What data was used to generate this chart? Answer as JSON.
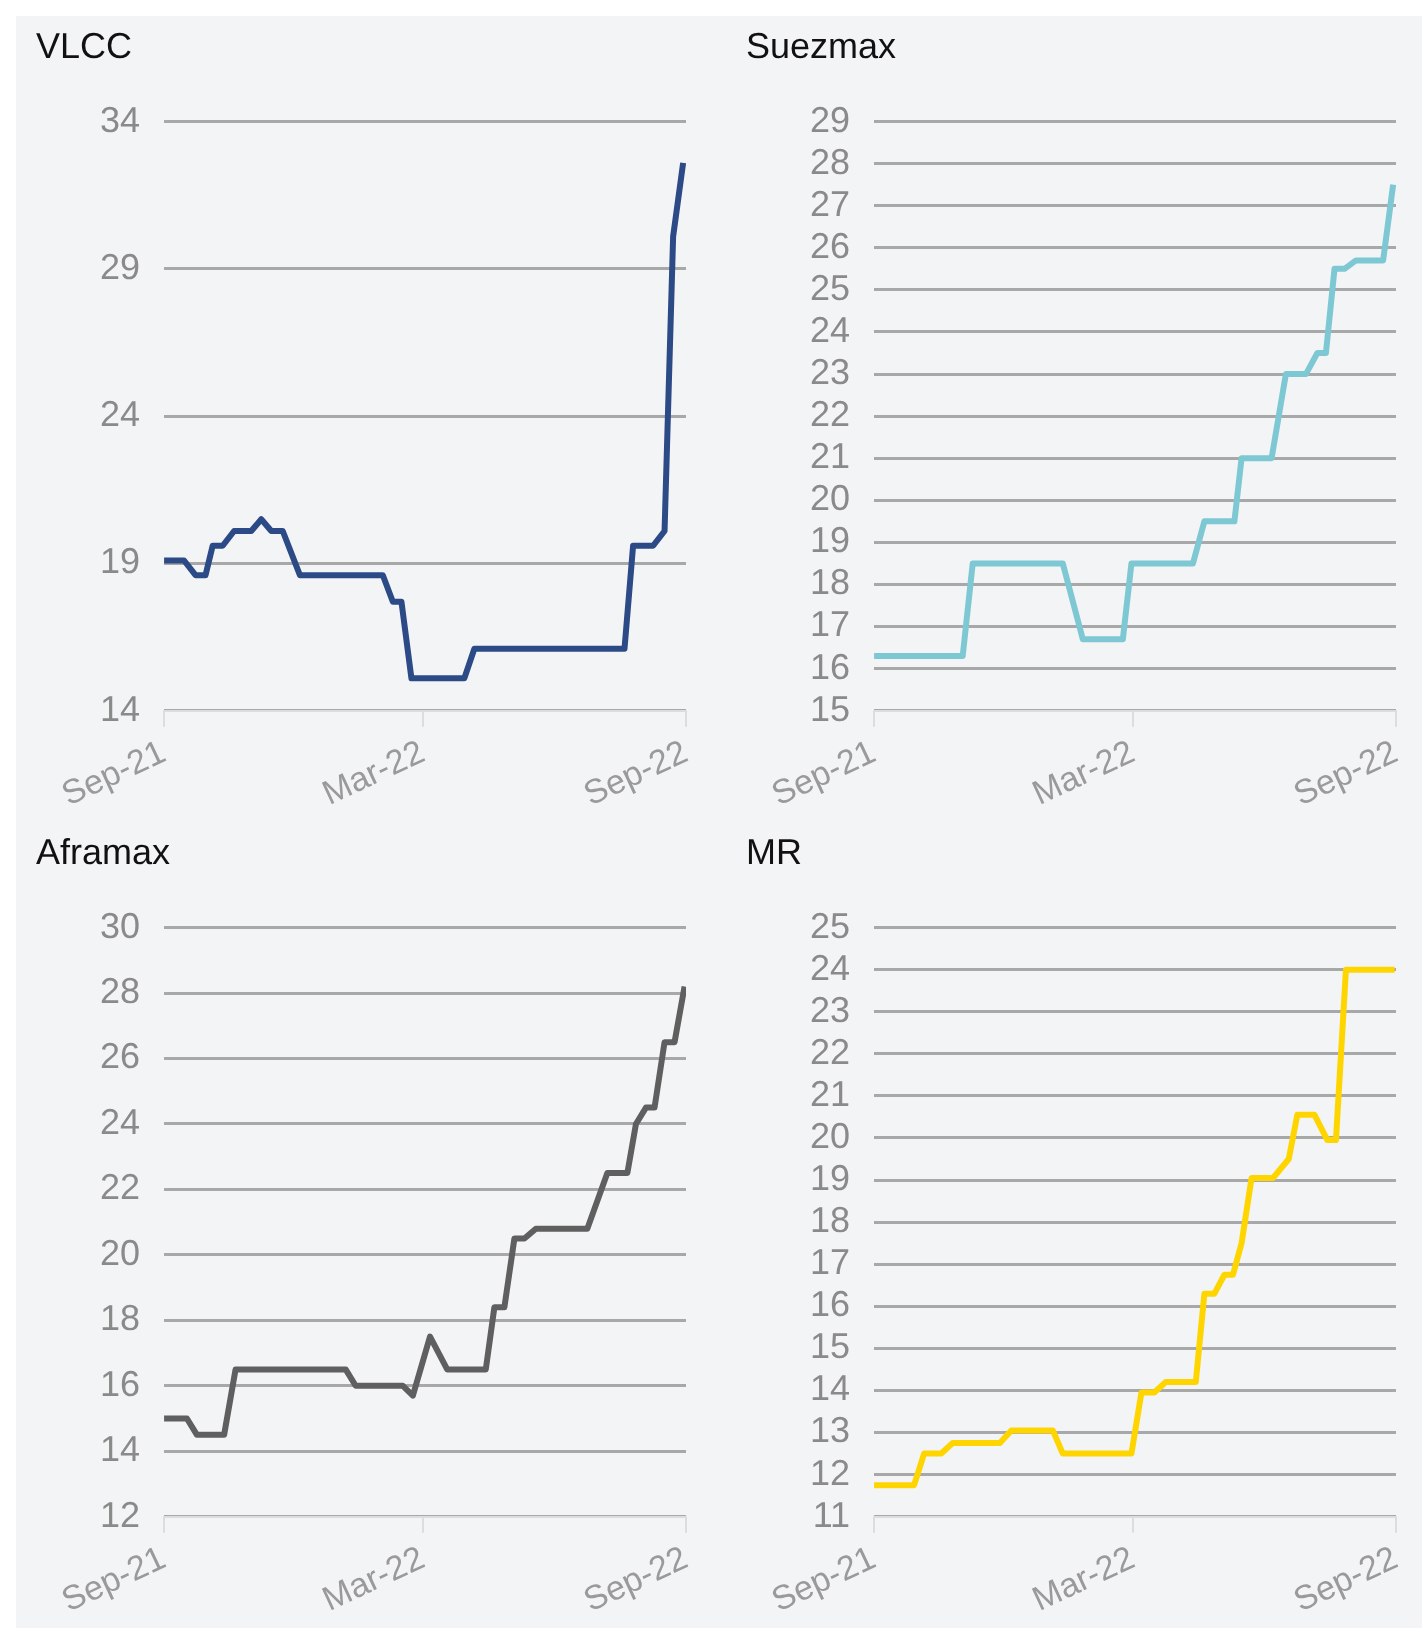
{
  "chart_data": [
    {
      "type": "line",
      "title": "VLCC",
      "x": [
        "2021-09-01",
        "2021-09-15",
        "2021-09-23",
        "2021-09-30",
        "2021-10-05",
        "2021-10-12",
        "2021-10-20",
        "2021-11-01",
        "2021-11-08",
        "2021-11-15",
        "2021-11-23",
        "2021-12-05",
        "2022-02-01",
        "2022-02-08",
        "2022-02-14",
        "2022-02-21",
        "2022-03-30",
        "2022-04-06",
        "2022-07-20",
        "2022-07-26",
        "2022-08-09",
        "2022-08-17",
        "2022-08-23",
        "2022-08-30"
      ],
      "series": [
        {
          "color": "#2b4a86",
          "values": [
            19.1,
            19.1,
            18.6,
            18.6,
            19.6,
            19.6,
            20.1,
            20.1,
            20.5,
            20.1,
            20.1,
            18.6,
            18.6,
            17.7,
            17.7,
            15.1,
            15.1,
            16.1,
            16.1,
            19.6,
            19.6,
            20.1,
            30.1,
            32.6
          ]
        }
      ],
      "xlim": [
        "2021-09-01",
        "2022-09-01"
      ],
      "xticks": [
        {
          "value": "2021-09-01",
          "label": "Sep-21"
        },
        {
          "value": "2022-03-01",
          "label": "Mar-22"
        },
        {
          "value": "2022-09-01",
          "label": "Sep-22"
        }
      ],
      "ylim": [
        14,
        34
      ],
      "yticks": [
        14,
        19,
        24,
        29,
        34
      ],
      "grid": "y",
      "legend": false
    },
    {
      "type": "line",
      "title": "Suezmax",
      "x": [
        "2021-09-01",
        "2021-11-02",
        "2021-11-09",
        "2022-01-11",
        "2022-01-25",
        "2022-02-22",
        "2022-02-28",
        "2022-04-12",
        "2022-04-20",
        "2022-05-11",
        "2022-05-16",
        "2022-06-06",
        "2022-06-16",
        "2022-06-30",
        "2022-07-08",
        "2022-07-14",
        "2022-07-20",
        "2022-07-27",
        "2022-08-04",
        "2022-08-23",
        "2022-08-30"
      ],
      "series": [
        {
          "color": "#7ec8d3",
          "values": [
            16.3,
            16.3,
            18.5,
            18.5,
            16.7,
            16.7,
            18.5,
            18.5,
            19.5,
            19.5,
            21,
            21,
            23,
            23,
            23.5,
            23.5,
            25.5,
            25.5,
            25.7,
            25.7,
            27.5
          ]
        }
      ],
      "xlim": [
        "2021-09-01",
        "2022-09-01"
      ],
      "xticks": [
        {
          "value": "2021-09-01",
          "label": "Sep-21"
        },
        {
          "value": "2022-03-01",
          "label": "Mar-22"
        },
        {
          "value": "2022-09-01",
          "label": "Sep-22"
        }
      ],
      "ylim": [
        15,
        29
      ],
      "yticks": [
        15,
        16,
        17,
        18,
        19,
        20,
        21,
        22,
        23,
        24,
        25,
        26,
        27,
        28,
        29
      ],
      "grid": "y",
      "legend": false
    },
    {
      "type": "line",
      "title": "Aframax",
      "x": [
        "2021-09-01",
        "2021-09-17",
        "2021-09-24",
        "2021-10-13",
        "2021-10-21",
        "2022-01-06",
        "2022-01-13",
        "2022-02-15",
        "2022-02-22",
        "2022-03-06",
        "2022-03-18",
        "2022-04-14",
        "2022-04-20",
        "2022-04-27",
        "2022-05-04",
        "2022-05-11",
        "2022-05-19",
        "2022-06-24",
        "2022-07-08",
        "2022-07-22",
        "2022-07-28",
        "2022-08-04",
        "2022-08-10",
        "2022-08-17",
        "2022-08-24",
        "2022-08-31"
      ],
      "series": [
        {
          "color": "#5f5f5f",
          "values": [
            15,
            15,
            14.5,
            14.5,
            16.5,
            16.5,
            16,
            16,
            15.7,
            17.5,
            16.5,
            16.5,
            18.4,
            18.4,
            20.5,
            20.5,
            20.8,
            20.8,
            22.5,
            22.5,
            24,
            24.5,
            24.5,
            26.5,
            26.5,
            28.2
          ]
        }
      ],
      "xlim": [
        "2021-09-01",
        "2022-09-01"
      ],
      "xticks": [
        {
          "value": "2021-09-01",
          "label": "Sep-21"
        },
        {
          "value": "2022-03-01",
          "label": "Mar-22"
        },
        {
          "value": "2022-09-01",
          "label": "Sep-22"
        }
      ],
      "ylim": [
        12,
        30
      ],
      "yticks": [
        12,
        14,
        16,
        18,
        20,
        22,
        24,
        26,
        28,
        30
      ],
      "grid": "y",
      "legend": false
    },
    {
      "type": "line",
      "title": "MR",
      "x": [
        "2021-09-01",
        "2021-09-29",
        "2021-10-06",
        "2021-10-18",
        "2021-10-26",
        "2021-11-28",
        "2021-12-06",
        "2022-01-04",
        "2022-01-11",
        "2022-02-28",
        "2022-03-07",
        "2022-03-16",
        "2022-03-24",
        "2022-04-14",
        "2022-04-20",
        "2022-04-27",
        "2022-05-04",
        "2022-05-10",
        "2022-05-16",
        "2022-05-23",
        "2022-06-07",
        "2022-06-18",
        "2022-06-24",
        "2022-07-06",
        "2022-07-15",
        "2022-07-21",
        "2022-07-28",
        "2022-08-31"
      ],
      "series": [
        {
          "color": "#ffd500",
          "values": [
            11.75,
            11.75,
            12.5,
            12.5,
            12.75,
            12.75,
            13.05,
            13.05,
            12.5,
            12.5,
            13.95,
            13.95,
            14.2,
            14.2,
            16.3,
            16.3,
            16.75,
            16.75,
            17.5,
            19.05,
            19.05,
            19.5,
            20.55,
            20.55,
            19.95,
            19.95,
            24,
            24
          ]
        }
      ],
      "xlim": [
        "2021-09-01",
        "2022-09-01"
      ],
      "xticks": [
        {
          "value": "2021-09-01",
          "label": "Sep-21"
        },
        {
          "value": "2022-03-01",
          "label": "Mar-22"
        },
        {
          "value": "2022-09-01",
          "label": "Sep-22"
        }
      ],
      "ylim": [
        11,
        25
      ],
      "yticks": [
        11,
        12,
        13,
        14,
        15,
        16,
        17,
        18,
        19,
        20,
        21,
        22,
        23,
        24,
        25
      ],
      "grid": "y",
      "legend": false
    }
  ]
}
